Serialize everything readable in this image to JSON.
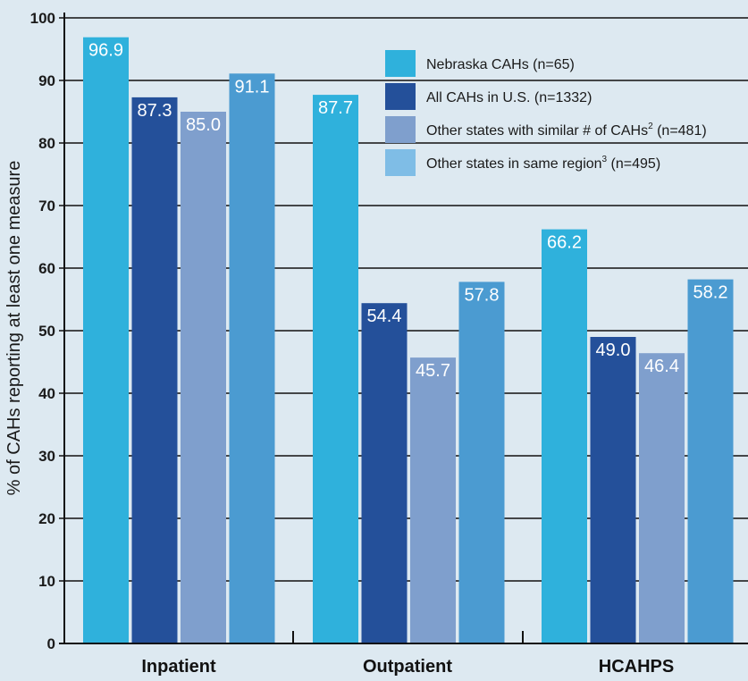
{
  "colors": {
    "background": "#dde9f1",
    "series": [
      "#2fb1dc",
      "#24509a",
      "#7f9fcd",
      "#4b9bd1"
    ],
    "legend_swatch_4": "#7fbde6",
    "axis": "#111111",
    "grid": "#111111"
  },
  "chart_data": {
    "type": "bar",
    "categories": [
      "Inpatient",
      "Outpatient",
      "HCAHPS"
    ],
    "ylabel": "% of CAHs reporting at least one measure",
    "xlabel": "",
    "ylim": [
      0,
      100
    ],
    "yticks": [
      0,
      10,
      20,
      30,
      40,
      50,
      60,
      70,
      80,
      90,
      100
    ],
    "grid": true,
    "legend_position": "top-right",
    "series": [
      {
        "name": "Nebraska CAHs (n=65)",
        "name_main": "Nebraska CAHs (n=65)",
        "name_sup": "",
        "name_tail": "",
        "values": [
          96.9,
          87.7,
          66.2
        ],
        "labels": [
          "96.9",
          "87.7",
          "66.2"
        ]
      },
      {
        "name": "All CAHs in U.S. (n=1332)",
        "name_main": "All CAHs in U.S. (n=1332)",
        "name_sup": "",
        "name_tail": "",
        "values": [
          87.3,
          54.4,
          49.0
        ],
        "labels": [
          "87.3",
          "54.4",
          "49.0"
        ]
      },
      {
        "name": "Other states with similar # of CAHs2 (n=481)",
        "name_main": "Other states with similar # of CAHs",
        "name_sup": "2",
        "name_tail": " (n=481)",
        "values": [
          85.0,
          45.7,
          46.4
        ],
        "labels": [
          "85.0",
          "45.7",
          "46.4"
        ]
      },
      {
        "name": "Other states in same region3 (n=495)",
        "name_main": "Other states in same region",
        "name_sup": "3",
        "name_tail": " (n=495)",
        "values": [
          91.1,
          57.8,
          58.2
        ],
        "labels": [
          "91.1",
          "57.8",
          "58.2"
        ]
      }
    ]
  }
}
